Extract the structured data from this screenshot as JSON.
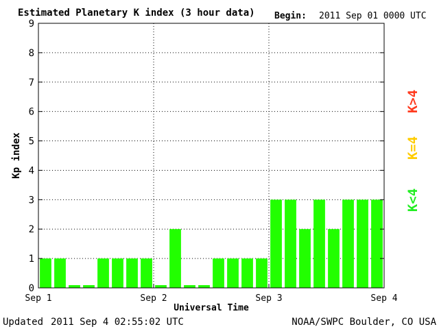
{
  "header": {
    "title": "Estimated Planetary K index (3 hour data)",
    "begin_label": "Begin:",
    "begin_value": "2011 Sep 01 0000 UTC"
  },
  "footer": {
    "updated_label": "Updated",
    "updated_value": "2011 Sep  4 02:55:02 UTC",
    "source": "NOAA/SWPC Boulder, CO USA"
  },
  "legend": {
    "items": [
      {
        "label": "K>4",
        "color": "#ff3b1f"
      },
      {
        "label": "K=4",
        "color": "#ffcc00"
      },
      {
        "label": "K<4",
        "color": "#22ee22"
      }
    ]
  },
  "chart_data": {
    "type": "bar",
    "title": "Estimated Planetary K index (3 hour data)",
    "xlabel": "Universal Time",
    "ylabel": "Kp index",
    "ylim": [
      0,
      9
    ],
    "yticks": [
      "0",
      "1",
      "2",
      "3",
      "4",
      "5",
      "6",
      "7",
      "8",
      "9"
    ],
    "xticks": [
      "Sep 1",
      "Sep 2",
      "Sep 3",
      "Sep 4"
    ],
    "grid": true,
    "bar_color": "#22ff00",
    "values": [
      1,
      1,
      0,
      0,
      1,
      1,
      1,
      1,
      0,
      2,
      0,
      0,
      1,
      1,
      1,
      1,
      3,
      3,
      2,
      3,
      2,
      3,
      3,
      3
    ]
  }
}
